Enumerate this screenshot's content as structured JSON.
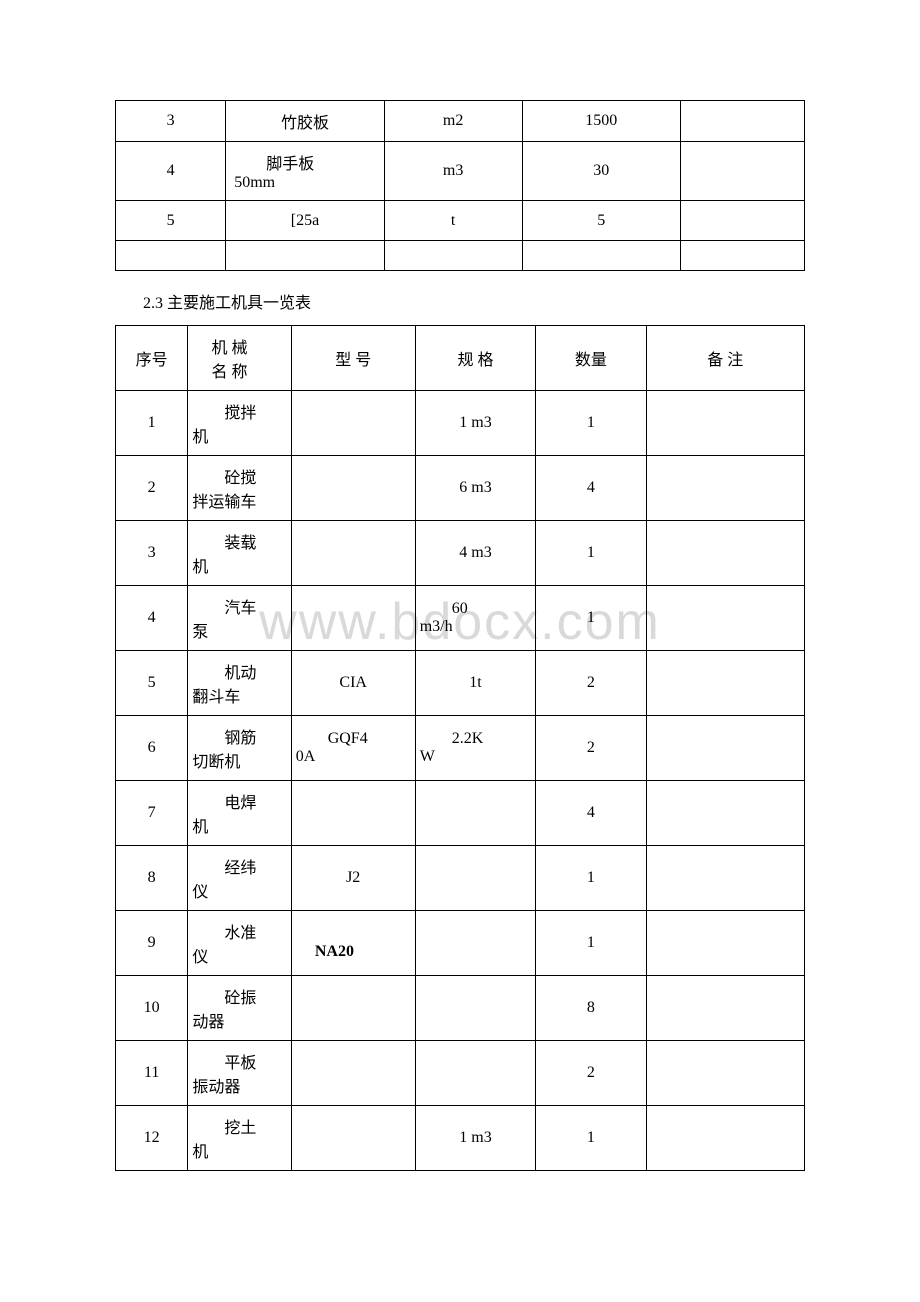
{
  "table1": {
    "rows": [
      {
        "c1": "3",
        "c2": "竹胶板",
        "c3": "m2",
        "c4": "1500",
        "c5": ""
      },
      {
        "c1": "4",
        "c2": "脚手板50mm",
        "c3": "m3",
        "c4": "30",
        "c5": ""
      },
      {
        "c1": "5",
        "c2": "[25a",
        "c3": "t",
        "c4": "5",
        "c5": ""
      },
      {
        "c1": "",
        "c2": "",
        "c3": "",
        "c4": "",
        "c5": ""
      }
    ]
  },
  "sectionTitle": "2.3 主要施工机具一览表",
  "table2": {
    "header": {
      "h1": "序号",
      "h2": "机 械名 称",
      "h3": "型 号",
      "h4": "规 格",
      "h5": "数量",
      "h6": "备 注"
    },
    "rows": [
      {
        "c1": "1",
        "c2": "搅拌机",
        "c3": "",
        "c4": "1 m3",
        "c5": "1",
        "c6": ""
      },
      {
        "c1": "2",
        "c2": "砼搅拌运输车",
        "c3": "",
        "c4": "6 m3",
        "c5": "4",
        "c6": ""
      },
      {
        "c1": "3",
        "c2": "装载机",
        "c3": "",
        "c4": "4 m3",
        "c5": "1",
        "c6": ""
      },
      {
        "c1": "4",
        "c2": "汽车泵",
        "c3": "",
        "c4": "60 m3/h",
        "c5": "1",
        "c6": ""
      },
      {
        "c1": "5",
        "c2": "机动翻斗车",
        "c3": "CIA",
        "c4": "1t",
        "c5": "2",
        "c6": ""
      },
      {
        "c1": "6",
        "c2": "钢筋切断机",
        "c3": "GQF40A",
        "c4": "2.2KW",
        "c5": "2",
        "c6": ""
      },
      {
        "c1": "7",
        "c2": "电焊机",
        "c3": "",
        "c4": "",
        "c5": "4",
        "c6": ""
      },
      {
        "c1": "8",
        "c2": "经纬仪",
        "c3": "J2",
        "c4": "",
        "c5": "1",
        "c6": ""
      },
      {
        "c1": "9",
        "c2": "水准仪",
        "c3": "NA20",
        "c4": "",
        "c5": "1",
        "c6": "",
        "c3bold": true
      },
      {
        "c1": "10",
        "c2": "砼振动器",
        "c3": "",
        "c4": "",
        "c5": "8",
        "c6": ""
      },
      {
        "c1": "11",
        "c2": "平板振动器",
        "c3": "",
        "c4": "",
        "c5": "2",
        "c6": ""
      },
      {
        "c1": "12",
        "c2": "挖土机",
        "c3": "",
        "c4": "1 m3",
        "c5": "1",
        "c6": ""
      }
    ]
  },
  "watermark": "www.bdocx.com"
}
